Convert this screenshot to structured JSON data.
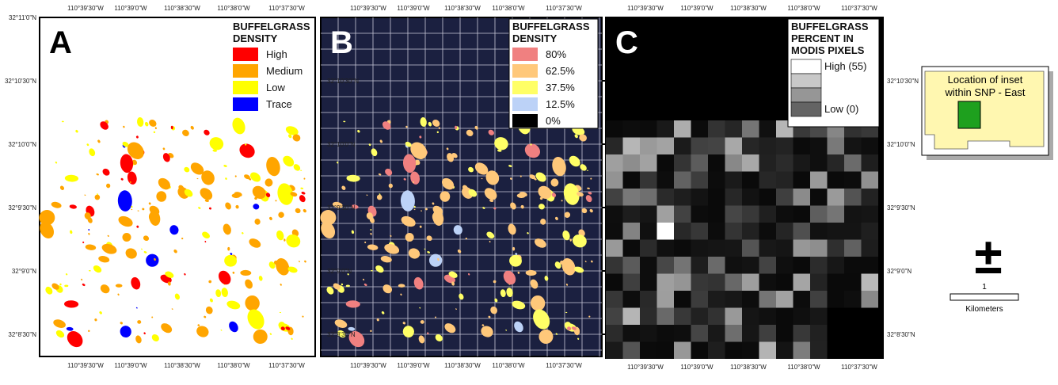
{
  "panels": [
    {
      "letter": "A",
      "legend": {
        "title_lines": [
          "BUFFELGRASS",
          "DENSITY"
        ],
        "items": [
          {
            "label": "High",
            "color": "#ff0000"
          },
          {
            "label": "Medium",
            "color": "#ffa500"
          },
          {
            "label": "Low",
            "color": "#ffff00"
          },
          {
            "label": "Trace",
            "color": "#0000ff"
          }
        ]
      },
      "top_ticks": [
        "110°39'30\"W",
        "110°39'0\"W",
        "110°38'30\"W",
        "110°38'0\"W",
        "110°37'30\"W"
      ],
      "bottom_ticks": [
        "110°39'30\"W",
        "110°39'0\"W",
        "110°38'30\"W",
        "110°38'0\"W",
        "110°37'30\"W"
      ],
      "lat_ticks": [
        "32°11'0\"N",
        "32°10'30\"N",
        "32°10'0\"N",
        "32°9'30\"N",
        "32°9'0\"N",
        "32°8'30\"N"
      ]
    },
    {
      "letter": "B",
      "legend": {
        "title_lines": [
          "BUFFELGRASS",
          "DENSITY"
        ],
        "items": [
          {
            "label": "80%",
            "color": "#f08080"
          },
          {
            "label": "62.5%",
            "color": "#ffc87a"
          },
          {
            "label": "37.5%",
            "color": "#ffff66"
          },
          {
            "label": "12.5%",
            "color": "#bcd2f7"
          },
          {
            "label": "0%",
            "color": "#000000"
          }
        ]
      },
      "top_ticks": [
        "110°39'30\"W",
        "110°39'0\"W",
        "110°38'30\"W",
        "110°38'0\"W",
        "110°37'30\"W"
      ],
      "bottom_ticks": [
        "110°39'30\"W",
        "110°39'0\"W",
        "110°38'30\"W",
        "110°38'0\"W",
        "110°37'30\"W"
      ],
      "lat_ticks": [
        "32°10'30\"N",
        "32°10'0\"N",
        "32°9'30\"N",
        "32°9'0\"N",
        "32°8'30\"N"
      ]
    },
    {
      "letter": "C",
      "legend": {
        "title_lines": [
          "BUFFELGRASS",
          "PERCENT IN",
          "MODIS PIXELS"
        ],
        "items": [
          {
            "label": "High (55)",
            "color": "#ffffff"
          },
          {
            "label": null,
            "color": "#c8c8c8"
          },
          {
            "label": null,
            "color": "#969696"
          },
          {
            "label": "Low (0)",
            "color": "#646464"
          }
        ]
      },
      "top_ticks": [
        "110°39'30\"W",
        "110°39'0\"W",
        "110°38'30\"W",
        "110°38'0\"W",
        "110°37'30\"W"
      ],
      "bottom_ticks": [
        "110°39'30\"W",
        "110°39'0\"W",
        "110°38'30\"W",
        "110°38'0\"W",
        "110°37'30\"W"
      ],
      "lat_ticks": [
        "32°10'30\"N",
        "32°10'0\"N",
        "32°9'30\"N",
        "32°9'0\"N",
        "32°8'30\"N"
      ]
    }
  ],
  "inset": {
    "label_lines": [
      "Location of inset",
      "within SNP - East"
    ]
  },
  "north_arrow": "±",
  "scale_bar": {
    "label": "1",
    "units": "Kilometers"
  }
}
